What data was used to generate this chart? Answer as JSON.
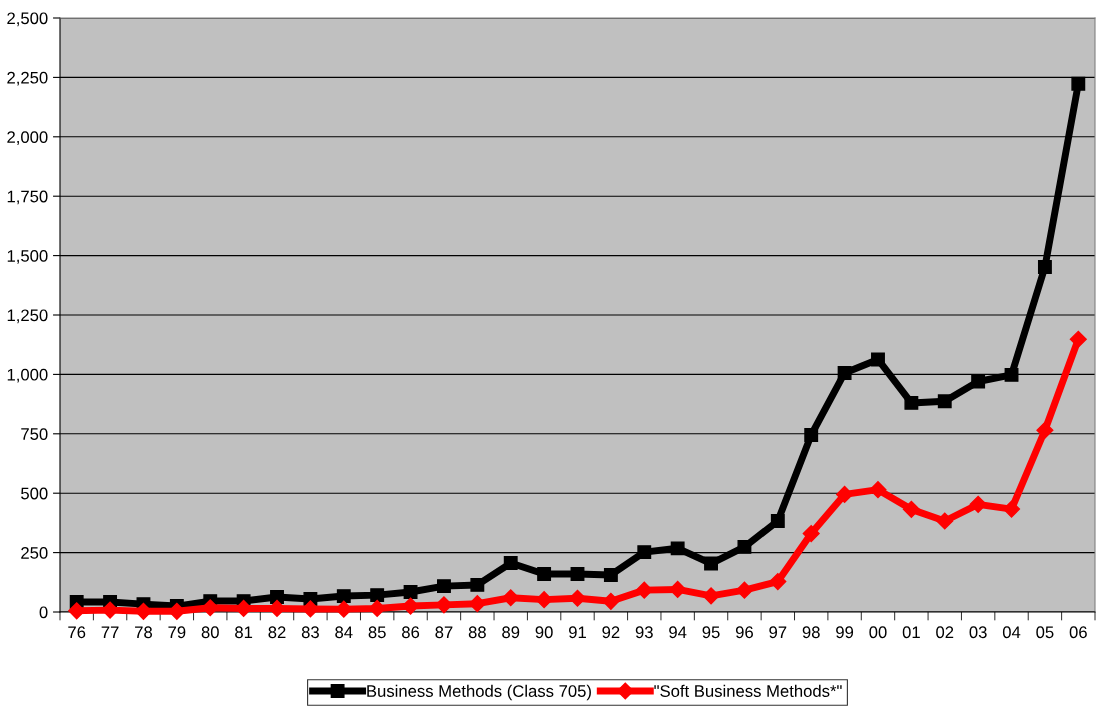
{
  "chart_data": {
    "type": "line",
    "categories": [
      "76",
      "77",
      "78",
      "79",
      "80",
      "81",
      "82",
      "83",
      "84",
      "85",
      "86",
      "87",
      "88",
      "89",
      "90",
      "91",
      "92",
      "93",
      "94",
      "95",
      "96",
      "97",
      "98",
      "99",
      "00",
      "01",
      "02",
      "03",
      "04",
      "05",
      "06"
    ],
    "series": [
      {
        "name": "Business Methods (Class 705)",
        "color": "#000000",
        "marker": "square",
        "values": [
          42,
          42,
          33,
          25,
          46,
          46,
          63,
          55,
          67,
          71,
          84,
          109,
          114,
          206,
          160,
          160,
          156,
          252,
          268,
          204,
          274,
          383,
          745,
          1006,
          1063,
          880,
          887,
          970,
          998,
          1452,
          2223
        ]
      },
      {
        "name": "\"Soft Business Methods*\"",
        "color": "#ff0000",
        "marker": "diamond",
        "values": [
          5,
          8,
          3,
          3,
          18,
          15,
          15,
          13,
          12,
          15,
          25,
          30,
          35,
          60,
          52,
          58,
          45,
          92,
          95,
          68,
          92,
          128,
          330,
          495,
          515,
          432,
          383,
          453,
          433,
          765,
          1148
        ]
      }
    ],
    "ylim": [
      0,
      2500
    ],
    "yticks": [
      0,
      {
        "value": 250,
        "label": "250"
      },
      {
        "value": 500,
        "label": "500"
      },
      {
        "value": 750,
        "label": "750"
      },
      {
        "value": 1000,
        "label": "1,000"
      },
      {
        "value": 1250,
        "label": "1,250"
      },
      {
        "value": 1500,
        "label": "1,500"
      },
      {
        "value": 1750,
        "label": "1,750"
      },
      {
        "value": 2000,
        "label": "2,000"
      },
      {
        "value": 2250,
        "label": "2,250"
      },
      {
        "value": 2500,
        "label": "2,500"
      }
    ],
    "grid": "y",
    "legend": "bottom",
    "line_style": "solid"
  }
}
